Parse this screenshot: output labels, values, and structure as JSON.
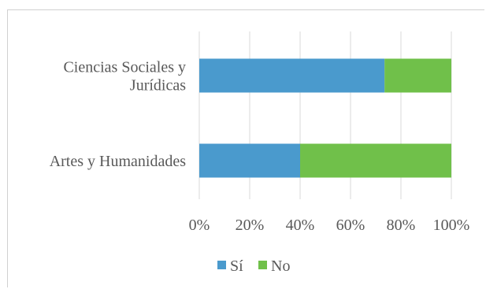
{
  "chart_data": {
    "type": "bar",
    "orientation": "horizontal",
    "stacked": true,
    "percent_stacked": true,
    "categories": [
      "Ciencias Sociales y Jurídicas",
      "Artes y Humanidades"
    ],
    "category_label_lines": [
      [
        "Ciencias Sociales y",
        "Jurídicas"
      ],
      [
        "Artes y Humanidades"
      ]
    ],
    "series": [
      {
        "name": "Sí",
        "values": [
          73.5,
          40
        ],
        "color": "#4a9acd"
      },
      {
        "name": "No",
        "values": [
          26.5,
          60
        ],
        "color": "#70c04a"
      }
    ],
    "xlim": [
      0,
      100
    ],
    "x_ticks": [
      0,
      20,
      40,
      60,
      80,
      100
    ],
    "x_tick_labels": [
      "0%",
      "20%",
      "40%",
      "60%",
      "80%",
      "100%"
    ],
    "grid": true,
    "legend_position": "bottom",
    "title": "",
    "xlabel": "",
    "ylabel": ""
  }
}
